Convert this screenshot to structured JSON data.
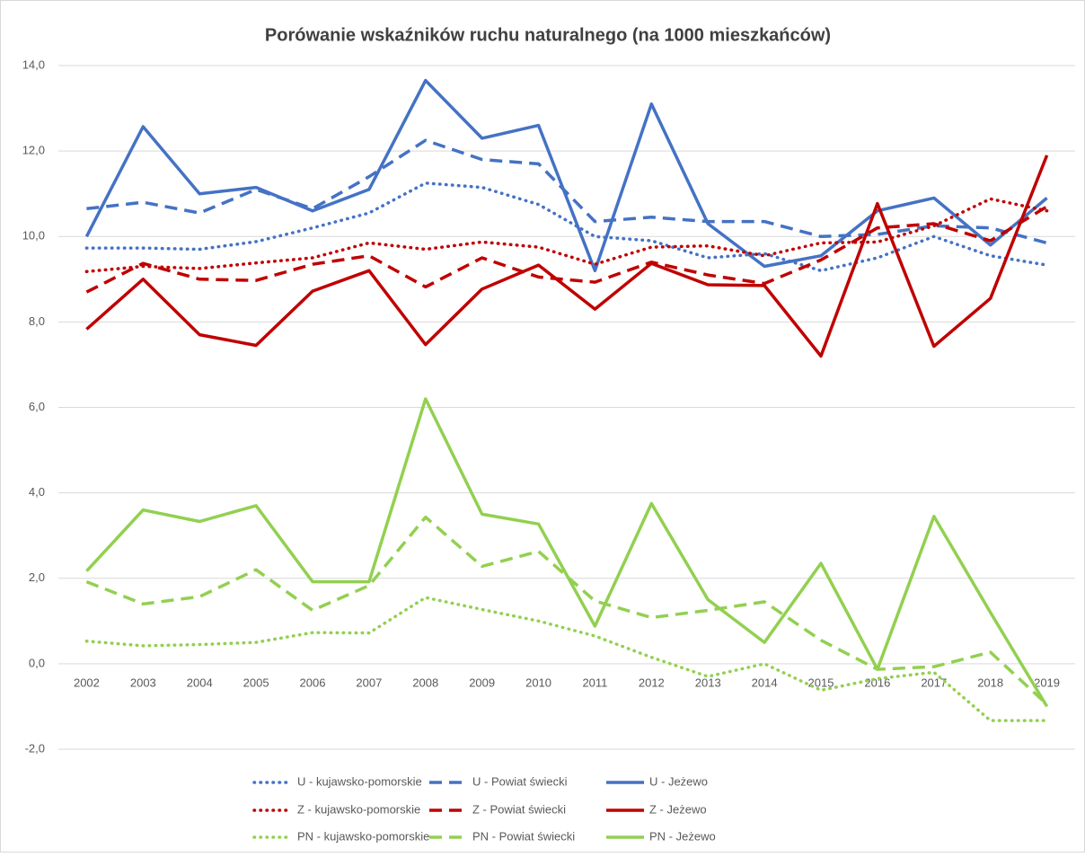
{
  "chart_data": {
    "type": "line",
    "title": "Porówanie wskaźników ruchu naturalnego (na 1000 mieszkańców)",
    "categories": [
      "2002",
      "2003",
      "2004",
      "2005",
      "2006",
      "2007",
      "2008",
      "2009",
      "2010",
      "2011",
      "2012",
      "2013",
      "2014",
      "2015",
      "2016",
      "2017",
      "2018",
      "2019"
    ],
    "ylim": [
      -2,
      14
    ],
    "yticks": [
      {
        "value": -2,
        "label": "-2,0"
      },
      {
        "value": 0,
        "label": "0,0"
      },
      {
        "value": 2,
        "label": "2,0"
      },
      {
        "value": 4,
        "label": "4,0"
      },
      {
        "value": 6,
        "label": "6,0"
      },
      {
        "value": 8,
        "label": "8,0"
      },
      {
        "value": 10,
        "label": "10,0"
      },
      {
        "value": 12,
        "label": "12,0"
      },
      {
        "value": 14,
        "label": "14,0"
      }
    ],
    "grid": true,
    "legend": "bottom",
    "series": [
      {
        "name": "U - kujawsko-pomorskie",
        "color": "#4472c4",
        "style": "dotted",
        "values": [
          9.73,
          9.73,
          9.7,
          9.88,
          10.2,
          10.55,
          11.25,
          11.15,
          10.75,
          10.0,
          9.9,
          9.5,
          9.6,
          9.2,
          9.5,
          10.0,
          9.55,
          9.33
        ]
      },
      {
        "name": "U - Powiat świecki",
        "color": "#4472c4",
        "style": "dashed",
        "values": [
          10.65,
          10.8,
          10.55,
          11.1,
          10.65,
          11.4,
          12.25,
          11.8,
          11.7,
          10.35,
          10.45,
          10.35,
          10.35,
          10.0,
          10.05,
          10.25,
          10.2,
          9.85
        ]
      },
      {
        "name": "U - Jeżewo",
        "color": "#4472c4",
        "style": "solid",
        "values": [
          10.0,
          12.57,
          11.0,
          11.15,
          10.6,
          11.1,
          13.65,
          12.3,
          12.6,
          9.2,
          13.1,
          10.3,
          9.3,
          9.55,
          10.6,
          10.9,
          9.8,
          10.9
        ]
      },
      {
        "name": "Z - kujawsko-pomorskie",
        "color": "#c00000",
        "style": "dotted",
        "values": [
          9.18,
          9.3,
          9.25,
          9.38,
          9.5,
          9.85,
          9.7,
          9.87,
          9.75,
          9.35,
          9.75,
          9.78,
          9.55,
          9.85,
          9.87,
          10.25,
          10.88,
          10.6
        ]
      },
      {
        "name": "Z - Powiat świecki",
        "color": "#c00000",
        "style": "dashed",
        "values": [
          8.7,
          9.37,
          9.0,
          8.97,
          9.35,
          9.55,
          8.82,
          9.5,
          9.05,
          8.93,
          9.4,
          9.1,
          8.9,
          9.45,
          10.2,
          10.3,
          9.9,
          10.7
        ]
      },
      {
        "name": "Z - Jeżewo",
        "color": "#c00000",
        "style": "solid",
        "values": [
          7.83,
          9.0,
          7.7,
          7.45,
          8.72,
          9.2,
          7.47,
          8.77,
          9.33,
          8.3,
          9.37,
          8.87,
          8.85,
          7.2,
          10.77,
          7.43,
          8.55,
          11.9
        ]
      },
      {
        "name": "PN - kujawsko-pomorskie",
        "color": "#92d050",
        "style": "dotted",
        "values": [
          0.53,
          0.42,
          0.45,
          0.5,
          0.73,
          0.72,
          1.55,
          1.27,
          1.0,
          0.65,
          0.15,
          -0.3,
          0.0,
          -0.62,
          -0.35,
          -0.2,
          -1.33,
          -1.33
        ]
      },
      {
        "name": "PN - Powiat świecki",
        "color": "#92d050",
        "style": "dashed",
        "values": [
          1.92,
          1.4,
          1.57,
          2.2,
          1.25,
          1.83,
          3.43,
          2.28,
          2.63,
          1.47,
          1.08,
          1.25,
          1.45,
          0.55,
          -0.13,
          -0.07,
          0.27,
          -0.95
        ]
      },
      {
        "name": "PN - Jeżewo",
        "color": "#92d050",
        "style": "solid",
        "values": [
          2.17,
          3.6,
          3.33,
          3.7,
          1.92,
          1.92,
          6.2,
          3.5,
          3.27,
          0.88,
          3.75,
          1.5,
          0.5,
          2.35,
          -0.13,
          3.45,
          1.2,
          -1.0
        ]
      }
    ]
  }
}
